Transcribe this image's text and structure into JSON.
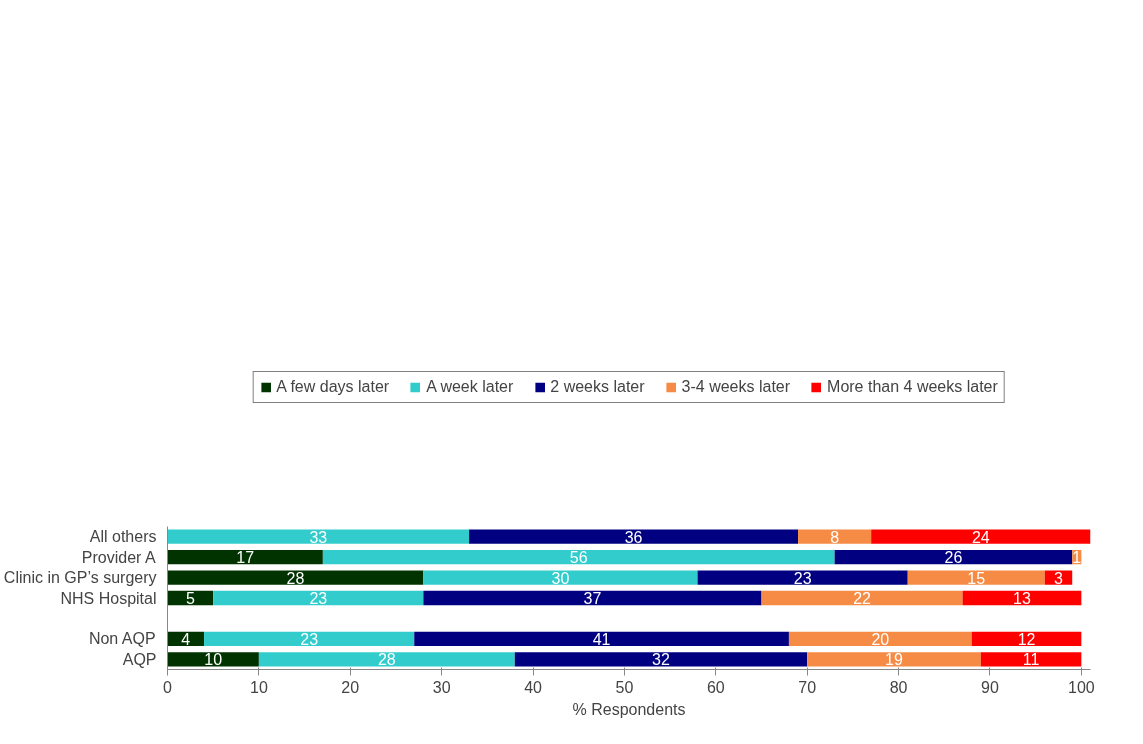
{
  "chart_data": {
    "type": "bar",
    "orientation": "horizontal",
    "stacked": true,
    "xlabel": "% Respondents",
    "categories": [
      "All others",
      "Provider A",
      "Clinic in GP’s surgery",
      "NHS Hospital",
      null,
      "Non AQP",
      "AQP"
    ],
    "series": [
      {
        "name": "A few days later",
        "color": "#003300",
        "values": [
          null,
          17,
          28,
          5,
          null,
          4,
          10
        ]
      },
      {
        "name": "A week later",
        "color": "#33cccc",
        "values": [
          33,
          56,
          30,
          23,
          null,
          23,
          28
        ]
      },
      {
        "name": "2 weeks later",
        "color": "#000080",
        "values": [
          36,
          26,
          23,
          37,
          null,
          41,
          32
        ]
      },
      {
        "name": "3-4 weeks later",
        "color": "#f68b45",
        "values": [
          8,
          1,
          15,
          22,
          null,
          20,
          19
        ]
      },
      {
        "name": "More than 4 weeks later",
        "color": "#ff0000",
        "values": [
          24,
          null,
          3,
          13,
          null,
          12,
          11
        ]
      }
    ],
    "xlim": [
      0,
      101
    ],
    "xticks": [
      0,
      10,
      20,
      30,
      40,
      50,
      60,
      70,
      80,
      90,
      100
    ],
    "data_labels": true,
    "grid": false,
    "legend": "top"
  }
}
